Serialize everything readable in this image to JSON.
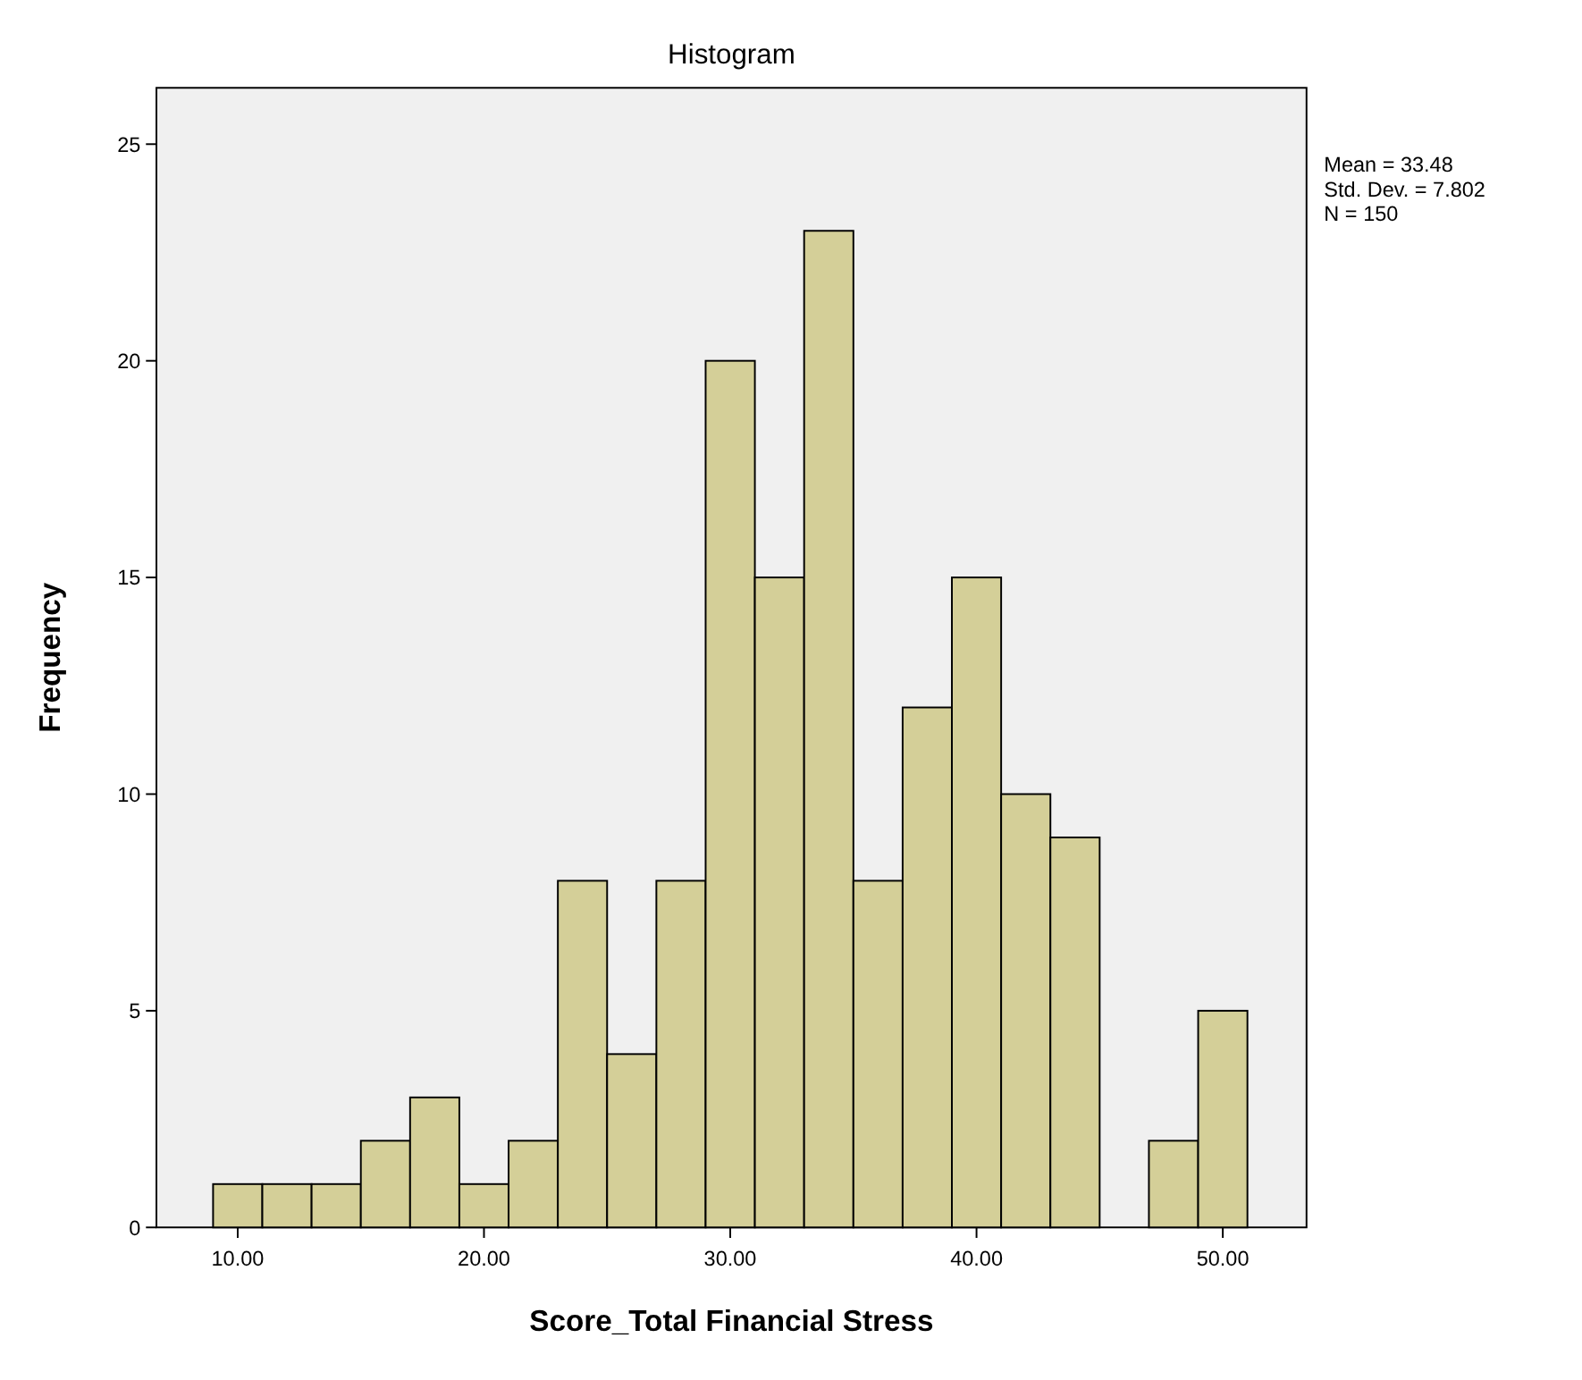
{
  "chart_data": {
    "type": "histogram",
    "title": "Histogram",
    "xlabel": "Score_Total Financial Stress",
    "ylabel": "Frequency",
    "bins": [
      9,
      11,
      13,
      15,
      17,
      19,
      21,
      23,
      25,
      27,
      29,
      31,
      33,
      35,
      37,
      39,
      41,
      43,
      45,
      47,
      49,
      51
    ],
    "values": [
      1,
      1,
      1,
      2,
      3,
      1,
      2,
      8,
      4,
      8,
      20,
      15,
      23,
      8,
      12,
      15,
      10,
      9,
      0,
      2,
      5
    ],
    "color": "#d4cf98",
    "xlim": [
      6.7,
      53.4
    ],
    "ylim": [
      0,
      26.3
    ],
    "xticks": [
      {
        "value": 10,
        "label": "10.00"
      },
      {
        "value": 20,
        "label": "20.00"
      },
      {
        "value": 30,
        "label": "30.00"
      },
      {
        "value": 40,
        "label": "40.00"
      },
      {
        "value": 50,
        "label": "50.00"
      }
    ],
    "yticks": [
      0,
      5,
      10,
      15,
      20,
      25
    ],
    "annotations": [
      "Mean = 33.48",
      "Std. Dev. = 7.802",
      "N = 150"
    ],
    "grid": false
  }
}
